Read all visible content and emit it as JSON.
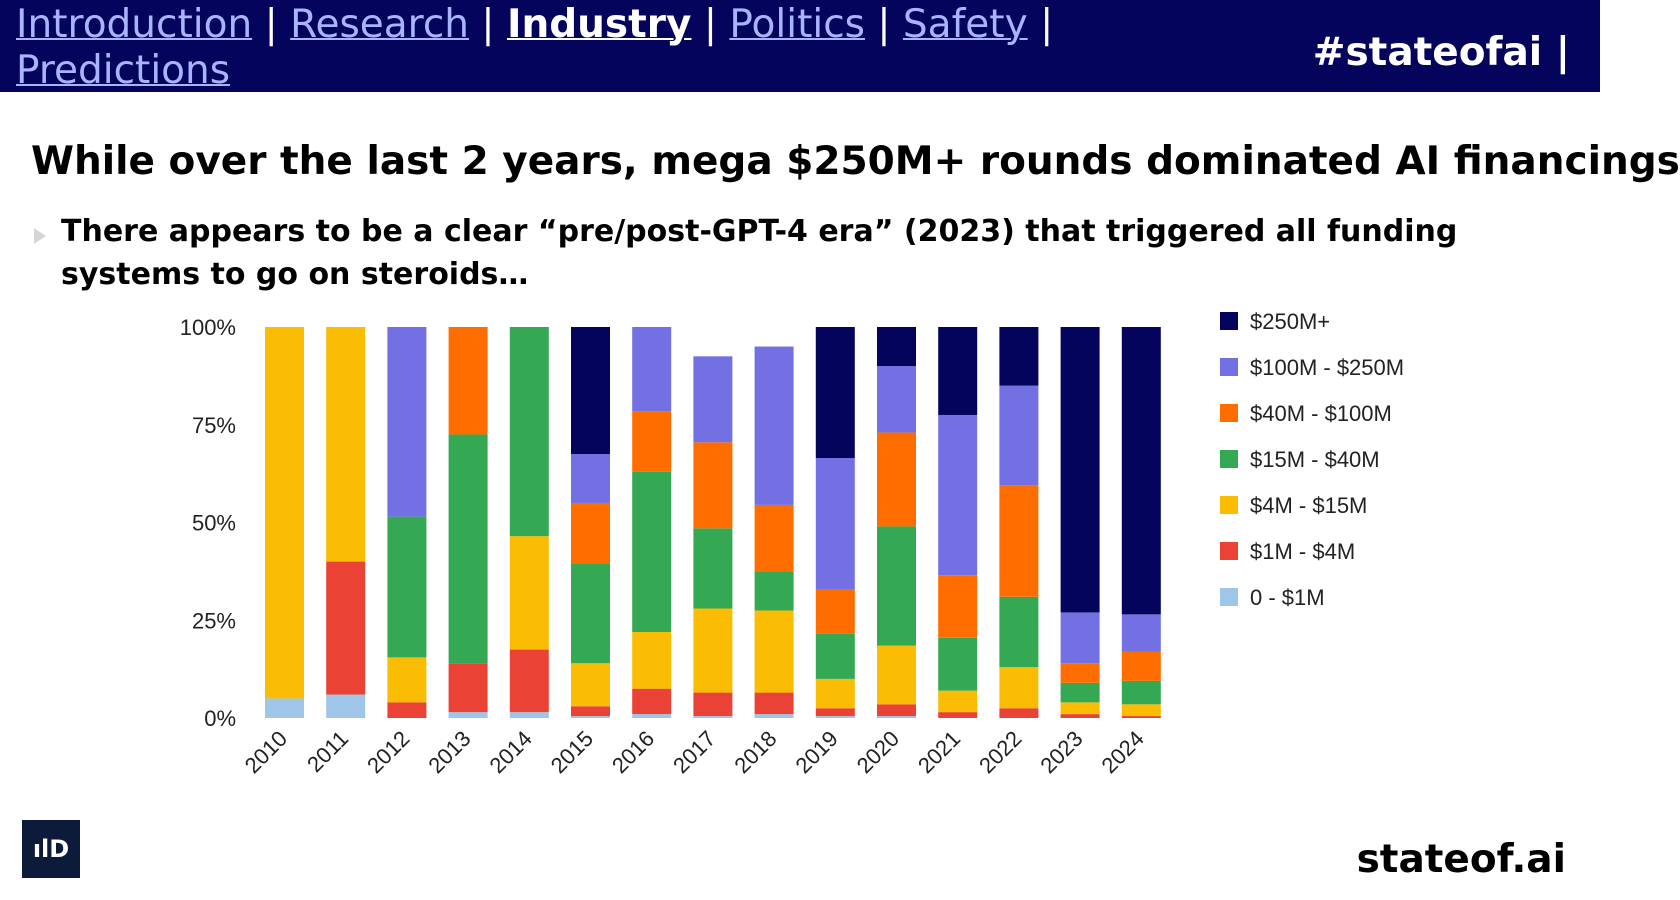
{
  "nav": {
    "items": [
      "Introduction",
      "Research",
      "Industry",
      "Politics",
      "Safety",
      "Predictions"
    ],
    "active": "Industry",
    "hashtag": "#stateofai |"
  },
  "title": "While over the last 2 years, mega $250M+ rounds dominated AI financings",
  "subtitle": "There appears to be a clear “pre/post-GPT-4 era” (2023) that triggered all funding systems to go on steroids…",
  "footer": "stateof.ai",
  "logo_text": "ılD",
  "chart_data": {
    "type": "bar",
    "stacked": true,
    "categories": [
      "2010",
      "2011",
      "2012",
      "2013",
      "2014",
      "2015",
      "2016",
      "2017",
      "2018",
      "2019",
      "2020",
      "2021",
      "2022",
      "2023",
      "2024"
    ],
    "y_ticks": [
      "0%",
      "25%",
      "50%",
      "75%",
      "100%"
    ],
    "ylim": [
      0,
      100
    ],
    "legend_position": "right",
    "series": [
      {
        "name": "0 - $1M",
        "color": "#9fc5e8",
        "values": [
          5,
          6,
          0,
          1.5,
          1.5,
          0.5,
          1,
          0.5,
          1,
          0.5,
          0.5,
          0,
          0,
          0,
          0
        ]
      },
      {
        "name": "$1M - $4M",
        "color": "#ea4335",
        "values": [
          0,
          34,
          4,
          12.5,
          16,
          2.5,
          6.5,
          6,
          5.5,
          2,
          3,
          1.5,
          2.5,
          1,
          0.5
        ]
      },
      {
        "name": "$4M - $15M",
        "color": "#fbbc04",
        "values": [
          95,
          60,
          11.5,
          0,
          29,
          11,
          14.5,
          21.5,
          21,
          7.5,
          15,
          5.5,
          10.5,
          3,
          3
        ]
      },
      {
        "name": "$15M - $40M",
        "color": "#34a853",
        "values": [
          0,
          0,
          36,
          58.5,
          53.5,
          25.5,
          41,
          20.5,
          10,
          11.5,
          30.5,
          13.5,
          18,
          5,
          6
        ]
      },
      {
        "name": "$40M - $100M",
        "color": "#ff6d01",
        "values": [
          0,
          0,
          0,
          27.5,
          0,
          15.5,
          15.5,
          22,
          17,
          11.5,
          24,
          16,
          28.5,
          5,
          7.5
        ]
      },
      {
        "name": "$100M - $250M",
        "color": "#7270e2",
        "values": [
          0,
          0,
          48.5,
          0,
          0,
          12.5,
          21.5,
          22,
          40.5,
          33.5,
          17,
          41,
          25.5,
          13,
          9.5
        ]
      },
      {
        "name": "$250M+",
        "color": "#04045c",
        "values": [
          0,
          0,
          0,
          0,
          0,
          32.5,
          0,
          0,
          0,
          33.5,
          10,
          22.5,
          15,
          73,
          73.5
        ]
      }
    ]
  }
}
